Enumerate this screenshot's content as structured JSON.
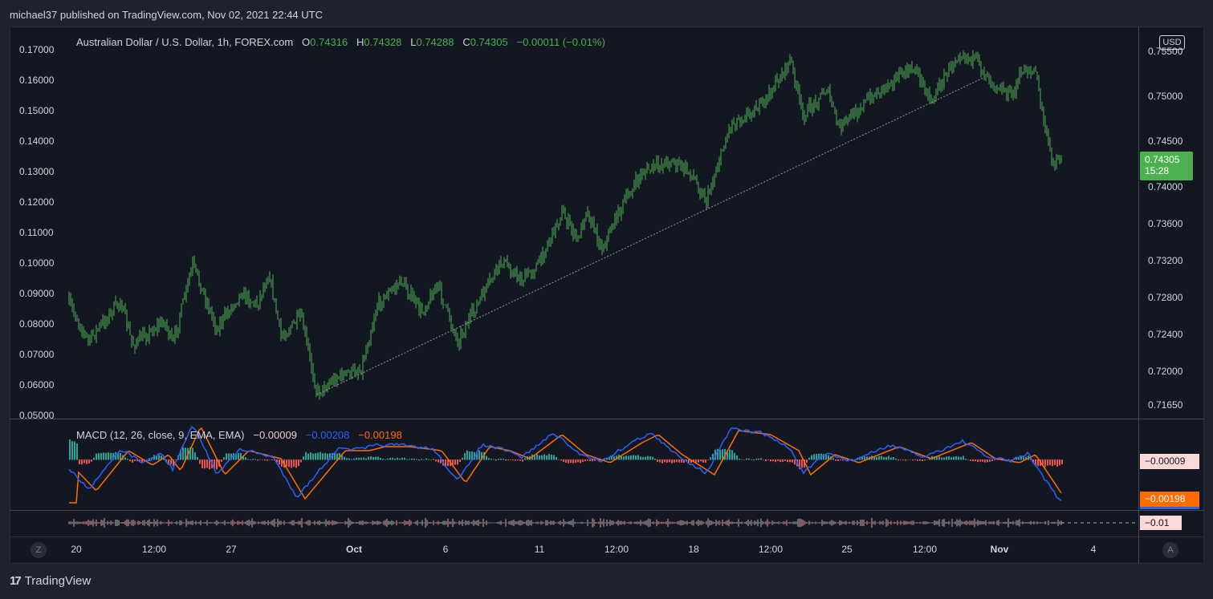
{
  "header": {
    "published_line": "michael37 published on TradingView.com, Nov 02, 2021 22:44 UTC"
  },
  "price_pane": {
    "symbol": "Australian Dollar / U.S. Dollar, 1h, FOREX.com",
    "ohlc": {
      "o_label": "O",
      "o": "0.74316",
      "h_label": "H",
      "h": "0.74328",
      "l_label": "L",
      "l": "0.74288",
      "c_label": "C",
      "c": "0.74305",
      "change": "−0.00011 (−0.01%)"
    },
    "currency_button": "USD",
    "last_price": "0.74305",
    "countdown": "15:28",
    "left_axis": [
      "0.17000",
      "0.16000",
      "0.15000",
      "0.14000",
      "0.13000",
      "0.12000",
      "0.11000",
      "0.10000",
      "0.09000",
      "0.08000",
      "0.07000",
      "0.06000",
      "0.05000"
    ],
    "right_axis": [
      "0.75500",
      "0.75000",
      "0.74500",
      "0.74000",
      "0.73600",
      "0.73200",
      "0.72800",
      "0.72400",
      "0.72000",
      "0.71650"
    ]
  },
  "macd_pane": {
    "title": "MACD (12, 26, close, 9, EMA, EMA)",
    "hist": "−0.00009",
    "macd": "−0.00208",
    "signal": "−0.00198",
    "hist_tag": "−0.00009",
    "signal_tag": "−0.00198"
  },
  "third_pane": {
    "value_tag": "−0.01"
  },
  "x_axis": [
    {
      "label": "20",
      "bold": false
    },
    {
      "label": "12:00",
      "bold": false
    },
    {
      "label": "27",
      "bold": false
    },
    {
      "label": "Oct",
      "bold": true
    },
    {
      "label": "6",
      "bold": false
    },
    {
      "label": "11",
      "bold": false
    },
    {
      "label": "12:00",
      "bold": false
    },
    {
      "label": "18",
      "bold": false
    },
    {
      "label": "12:00",
      "bold": false
    },
    {
      "label": "25",
      "bold": false
    },
    {
      "label": "12:00",
      "bold": false
    },
    {
      "label": "Nov",
      "bold": true
    },
    {
      "label": "4",
      "bold": false
    }
  ],
  "footer": {
    "z_button": "Z",
    "a_button": "A",
    "brand": "TradingView",
    "brand_mark": "17"
  },
  "colors": {
    "up": "#4caf50",
    "macd": "#2962ff",
    "signal": "#ff6d00",
    "bg": "#131722",
    "hist_pos": "#26a69a",
    "hist_neg": "#ef5350"
  }
}
